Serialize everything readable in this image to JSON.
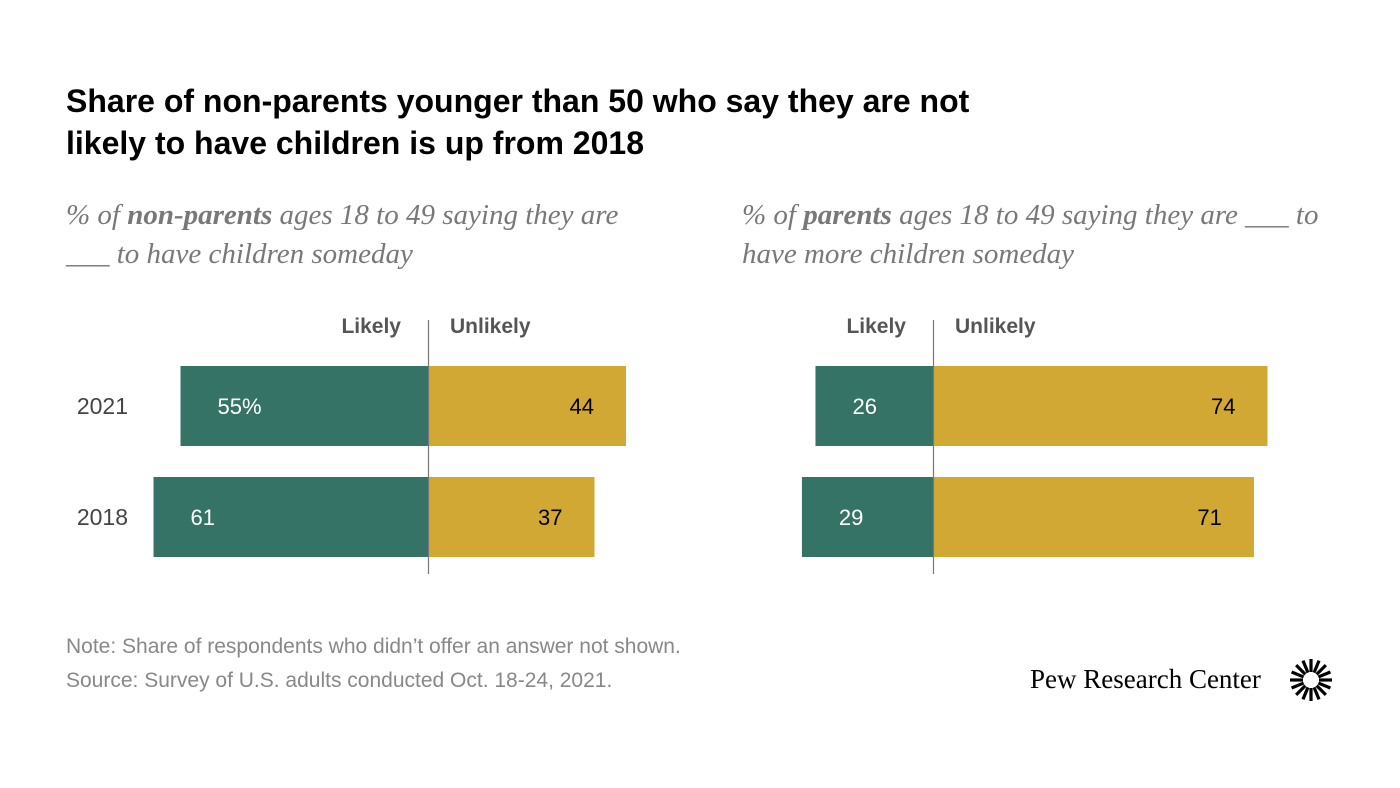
{
  "title": "Share of non-parents younger than 50 who say they are not likely to have children is up from 2018",
  "left_subtitle": {
    "pre": "% of ",
    "bold": "non-parents",
    "post": " ages 18 to 49 saying they are ___ to have children someday"
  },
  "right_subtitle": {
    "pre": "% of ",
    "bold": "parents",
    "post": " ages 18 to 49 saying they are ___ to have more children someday"
  },
  "note": "Note: Share of respondents who didn’t offer an answer not shown.",
  "source": "Source: Survey of U.S. adults conducted Oct. 18-24, 2021.",
  "brand": "Pew Research Center",
  "colors": {
    "likely": "#357366",
    "unlikely": "#D1A833",
    "axis": "#777777",
    "label": "#555555"
  },
  "chart_data": [
    {
      "type": "bar",
      "orientation": "diverging-horizontal",
      "categories": [
        "2021",
        "2018"
      ],
      "series": [
        {
          "name": "Likely",
          "values": [
            55,
            61
          ],
          "labels": [
            "55%",
            "61"
          ]
        },
        {
          "name": "Unlikely",
          "values": [
            44,
            37
          ],
          "labels": [
            "44",
            "37"
          ]
        }
      ]
    },
    {
      "type": "bar",
      "orientation": "diverging-horizontal",
      "categories": [
        "2021",
        "2018"
      ],
      "series": [
        {
          "name": "Likely",
          "values": [
            26,
            29
          ],
          "labels": [
            "26",
            "29"
          ]
        },
        {
          "name": "Unlikely",
          "values": [
            74,
            71
          ],
          "labels": [
            "74",
            "71"
          ]
        }
      ]
    }
  ]
}
